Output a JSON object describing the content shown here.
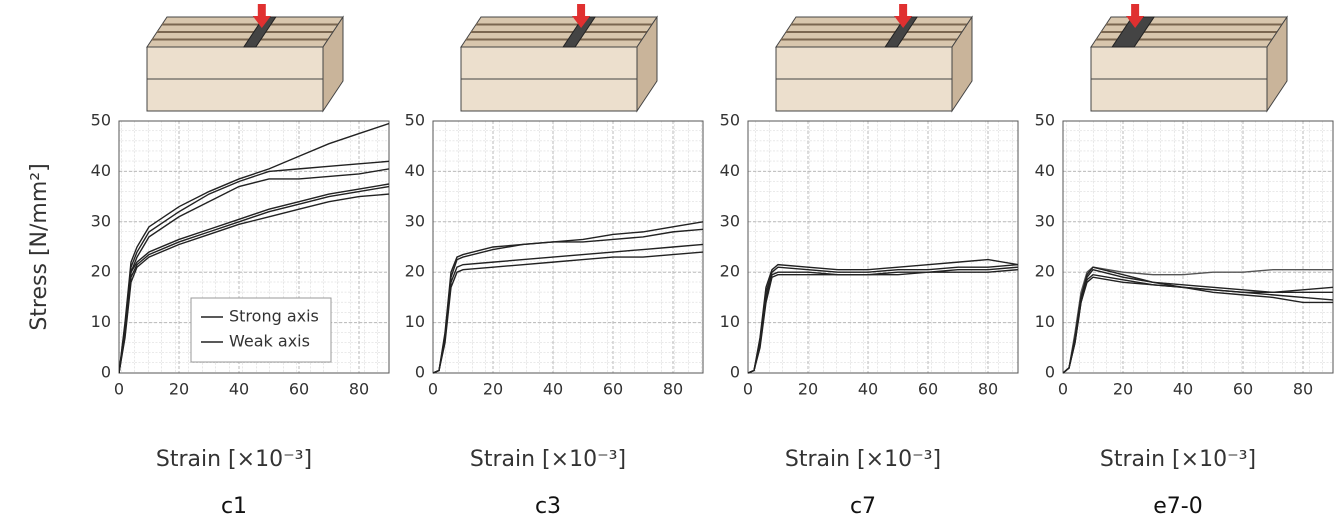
{
  "chart_data": [
    {
      "type": "line",
      "title": "c1",
      "ylabel": "Stress [N/mm²]",
      "xlabel": "Strain [×10⁻³]",
      "xlim": [
        0,
        90
      ],
      "ylim": [
        0,
        50
      ],
      "xticks": [
        0,
        20,
        40,
        60,
        80
      ],
      "yticks": [
        0,
        10,
        20,
        30,
        40,
        50
      ],
      "grid": true,
      "legend": "lower center",
      "x": [
        0,
        2,
        4,
        6,
        8,
        10,
        20,
        30,
        40,
        50,
        60,
        70,
        80,
        90
      ],
      "series": [
        {
          "name": "Strong axis",
          "color": "#222222",
          "values": [
            0,
            10,
            22,
            25,
            27,
            29,
            33,
            36,
            38.5,
            40.5,
            43,
            45.5,
            47.5,
            49.5
          ]
        },
        {
          "name": "Strong axis",
          "color": "#222222",
          "values": [
            0,
            9,
            21,
            24,
            26,
            28,
            32,
            35.5,
            38,
            40,
            40.5,
            41,
            41.5,
            42
          ]
        },
        {
          "name": "Strong axis",
          "color": "#222222",
          "values": [
            0,
            9,
            20,
            23,
            25,
            27,
            31,
            34,
            37,
            38.5,
            38.5,
            39,
            39.5,
            40.5
          ]
        },
        {
          "name": "Weak axis",
          "color": "#222222",
          "values": [
            0,
            8,
            20,
            22,
            23,
            24,
            26.5,
            28.5,
            30.5,
            32.5,
            34,
            35.5,
            36.5,
            37.5
          ]
        },
        {
          "name": "Weak axis",
          "color": "#222222",
          "values": [
            0,
            8,
            19,
            21.5,
            22.5,
            23.5,
            26,
            28,
            30,
            32,
            33.5,
            35,
            36,
            37
          ]
        },
        {
          "name": "Weak axis",
          "color": "#222222",
          "values": [
            0,
            7,
            18,
            21,
            22,
            23,
            25.5,
            27.5,
            29.5,
            31,
            32.5,
            34,
            35,
            35.5
          ]
        }
      ]
    },
    {
      "type": "line",
      "title": "c3",
      "xlabel": "Strain [×10⁻³]",
      "xlim": [
        0,
        90
      ],
      "ylim": [
        0,
        50
      ],
      "xticks": [
        0,
        20,
        40,
        60,
        80
      ],
      "yticks": [
        0,
        10,
        20,
        30,
        40,
        50
      ],
      "grid": true,
      "x": [
        0,
        2,
        4,
        6,
        8,
        10,
        20,
        30,
        40,
        50,
        60,
        70,
        80,
        90
      ],
      "series": [
        {
          "color": "#222222",
          "values": [
            0,
            0.5,
            8,
            20,
            23,
            23.5,
            25,
            25.5,
            26,
            26.5,
            27.5,
            28,
            29,
            30
          ]
        },
        {
          "color": "#222222",
          "values": [
            0,
            0.5,
            7,
            19,
            22.5,
            23,
            24.5,
            25.5,
            26,
            26,
            26.5,
            27,
            28,
            28.5
          ]
        },
        {
          "color": "#222222",
          "values": [
            0,
            0.5,
            7,
            18,
            21,
            21.5,
            22,
            22.5,
            23,
            23.5,
            24,
            24.5,
            25,
            25.5
          ]
        },
        {
          "color": "#222222",
          "values": [
            0,
            0.5,
            6,
            17,
            20,
            20.5,
            21,
            21.5,
            22,
            22.5,
            23,
            23,
            23.5,
            24
          ]
        }
      ]
    },
    {
      "type": "line",
      "title": "c7",
      "xlabel": "Strain [×10⁻³]",
      "xlim": [
        0,
        90
      ],
      "ylim": [
        0,
        50
      ],
      "xticks": [
        0,
        20,
        40,
        60,
        80
      ],
      "yticks": [
        0,
        10,
        20,
        30,
        40,
        50
      ],
      "grid": true,
      "x": [
        0,
        2,
        4,
        6,
        8,
        10,
        20,
        30,
        40,
        50,
        60,
        70,
        80,
        90
      ],
      "series": [
        {
          "color": "#222222",
          "values": [
            0,
            0.5,
            7,
            17,
            20.5,
            21.5,
            21,
            20.5,
            20.5,
            21,
            21.5,
            22,
            22.5,
            21.5
          ]
        },
        {
          "color": "#222222",
          "values": [
            0,
            0.5,
            6,
            16,
            20,
            21,
            20.5,
            20,
            20,
            20.5,
            20.5,
            21,
            21,
            21.5
          ]
        },
        {
          "color": "#222222",
          "values": [
            0,
            0.5,
            6,
            15,
            19.5,
            20,
            20,
            19.5,
            19.5,
            20,
            20,
            20.5,
            20.5,
            21
          ]
        },
        {
          "color": "#222222",
          "values": [
            0,
            0.5,
            5,
            14,
            19,
            19.5,
            19.5,
            19.5,
            19.5,
            19.5,
            20,
            20,
            20,
            20.5
          ]
        }
      ]
    },
    {
      "type": "line",
      "title": "e7-0",
      "xlabel": "Strain [×10⁻³]",
      "xlim": [
        0,
        90
      ],
      "ylim": [
        0,
        50
      ],
      "xticks": [
        0,
        20,
        40,
        60,
        80
      ],
      "yticks": [
        0,
        10,
        20,
        30,
        40,
        50
      ],
      "grid": true,
      "x": [
        0,
        2,
        4,
        6,
        8,
        10,
        20,
        30,
        40,
        50,
        60,
        70,
        80,
        90
      ],
      "series": [
        {
          "color": "#555555",
          "values": [
            0,
            1,
            8,
            16,
            20,
            21,
            20,
            19.5,
            19.5,
            20,
            20,
            20.5,
            20.5,
            20.5
          ]
        },
        {
          "color": "#222222",
          "values": [
            0,
            1,
            7,
            15,
            19.5,
            21,
            19.5,
            18,
            17.5,
            17,
            16.5,
            16,
            16,
            16
          ]
        },
        {
          "color": "#222222",
          "values": [
            0,
            1,
            7,
            15,
            19,
            20.5,
            19,
            18,
            17,
            16.5,
            16,
            15.5,
            15,
            14.5
          ]
        },
        {
          "color": "#222222",
          "values": [
            0,
            1,
            6,
            14,
            18.5,
            19.5,
            18.5,
            17.5,
            17,
            16,
            15.5,
            15,
            14,
            14
          ]
        },
        {
          "color": "#222222",
          "values": [
            0,
            1,
            6,
            14,
            18,
            19,
            18,
            17.5,
            17,
            16.5,
            16,
            16,
            16.5,
            17
          ]
        }
      ]
    }
  ]
}
